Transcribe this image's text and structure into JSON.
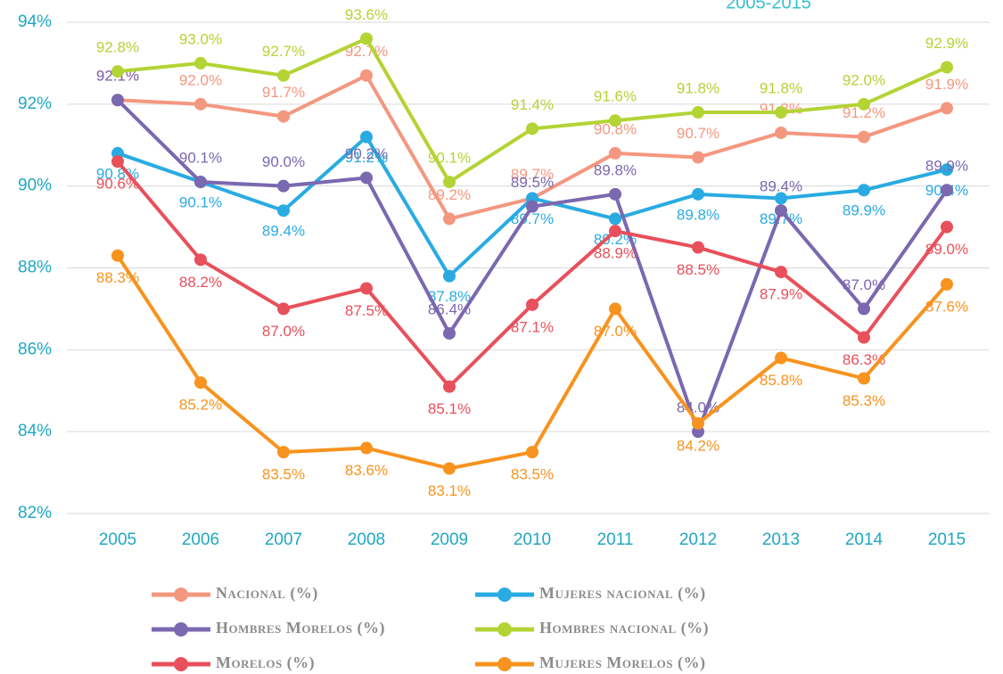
{
  "chart_data": {
    "type": "line",
    "title": "2005-2015",
    "categories": [
      "2005",
      "2006",
      "2007",
      "2008",
      "2009",
      "2010",
      "2011",
      "2012",
      "2013",
      "2014",
      "2015"
    ],
    "ylim": [
      82,
      94
    ],
    "yticks": [
      {
        "value": 82,
        "label": "82%"
      },
      {
        "value": 84,
        "label": "84%"
      },
      {
        "value": 86,
        "label": "86%"
      },
      {
        "value": 88,
        "label": "88%"
      },
      {
        "value": 90,
        "label": "90%"
      },
      {
        "value": 92,
        "label": "92%"
      },
      {
        "value": 94,
        "label": "94%"
      }
    ],
    "grid": true,
    "series": [
      {
        "name": "Nacional (%)",
        "color": "#f4977f",
        "values": [
          92.1,
          92.0,
          91.7,
          92.7,
          89.2,
          89.7,
          90.8,
          90.7,
          91.3,
          91.2,
          91.9
        ],
        "value_labels": [
          "92.1%",
          "92.0%",
          "91.7%",
          "92.7%",
          "89.2%",
          "89.7%",
          "90.8%",
          "90.7%",
          "91.3%",
          "91.2%",
          "91.9%"
        ]
      },
      {
        "name": "Mujeres nacional (%)",
        "color": "#29abe2",
        "values": [
          90.8,
          90.1,
          89.4,
          91.2,
          87.8,
          89.7,
          89.2,
          89.8,
          89.7,
          89.9,
          90.4
        ],
        "value_labels": [
          "90.8%",
          "90.1%",
          "89.4%",
          "91.2%",
          "87.8%",
          "89.7%",
          "89.2%",
          "89.8%",
          "89.7%",
          "89.9%",
          "90.4%"
        ]
      },
      {
        "name": "Hombres Morelos (%)",
        "color": "#7a68b0",
        "values": [
          92.1,
          90.1,
          90.0,
          90.2,
          86.4,
          89.5,
          89.8,
          84.0,
          89.4,
          87.0,
          89.9
        ],
        "value_labels": [
          "92.1%",
          "90.1%",
          "90.0%",
          "90.2%",
          "86.4%",
          "89.5%",
          "89.8%",
          "84.0%",
          "89.4%",
          "87.0%",
          "89.9%"
        ]
      },
      {
        "name": "Hombres nacional (%)",
        "color": "#b4d334",
        "values": [
          92.8,
          93.0,
          92.7,
          93.6,
          90.1,
          91.4,
          91.6,
          91.8,
          91.8,
          92.0,
          92.9
        ],
        "value_labels": [
          "92.8%",
          "93.0%",
          "92.7%",
          "93.6%",
          "90.1%",
          "91.4%",
          "91.6%",
          "91.8%",
          "91.8%",
          "92.0%",
          "92.9%"
        ]
      },
      {
        "name": "Morelos (%)",
        "color": "#e8505b",
        "values": [
          90.6,
          88.2,
          87.0,
          87.5,
          85.1,
          87.1,
          88.9,
          88.5,
          87.9,
          86.3,
          89.0
        ],
        "value_labels": [
          "90.6%",
          "88.2%",
          "87.0%",
          "87.5%",
          "85.1%",
          "87.1%",
          "88.9%",
          "88.5%",
          "87.9%",
          "86.3%",
          "89.0%"
        ]
      },
      {
        "name": "Mujeres Morelos (%)",
        "color": "#f7931e",
        "values": [
          88.3,
          85.2,
          83.5,
          83.6,
          83.1,
          83.5,
          87.0,
          84.2,
          85.8,
          85.3,
          87.6
        ],
        "value_labels": [
          "88.3%",
          "85.2%",
          "83.5%",
          "83.6%",
          "83.1%",
          "83.5%",
          "87.0%",
          "84.2%",
          "85.8%",
          "85.3%",
          "87.6%"
        ]
      }
    ]
  }
}
